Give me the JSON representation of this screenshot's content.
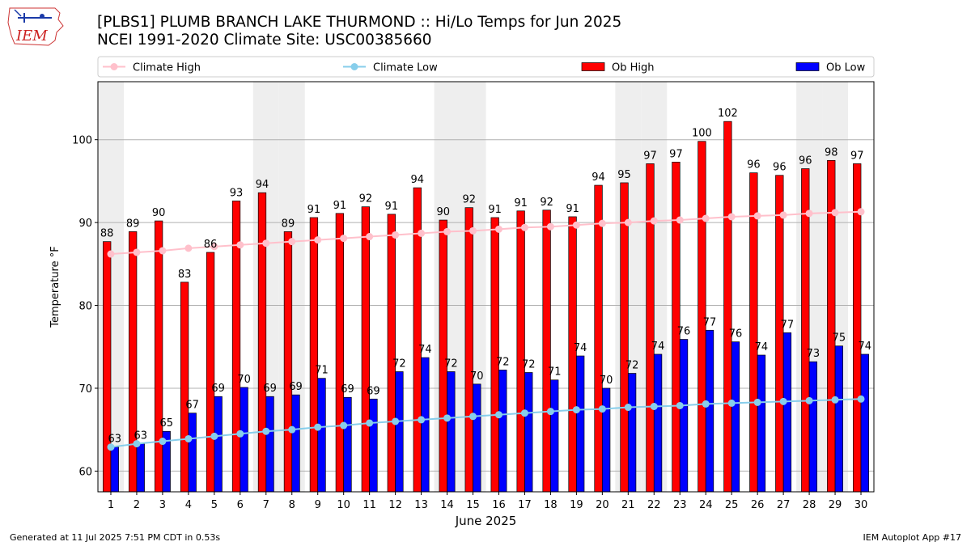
{
  "header": {
    "title_line1": "[PLBS1] PLUMB BRANCH LAKE THURMOND :: Hi/Lo Temps for Jun 2025",
    "title_line2": "NCEI 1991-2020 Climate Site: USC00385660",
    "logo_text": "IEM"
  },
  "footer": {
    "generated": "Generated at 11 Jul 2025 7:51 PM CDT in 0.53s",
    "app": "IEM Autoplot App #17"
  },
  "chart_data": {
    "type": "bar",
    "xlabel": "June 2025",
    "ylabel": "Temperature °F",
    "ylim": [
      57.5,
      107
    ],
    "yticks": [
      60,
      70,
      80,
      90,
      100
    ],
    "categories": [
      "1",
      "2",
      "3",
      "4",
      "5",
      "6",
      "7",
      "8",
      "9",
      "10",
      "11",
      "12",
      "13",
      "14",
      "15",
      "16",
      "17",
      "18",
      "19",
      "20",
      "21",
      "22",
      "23",
      "24",
      "25",
      "26",
      "27",
      "28",
      "29",
      "30"
    ],
    "legend": [
      "Climate High",
      "Climate Low",
      "Ob High",
      "Ob Low"
    ],
    "legend_position": "top",
    "grid": true,
    "weekend_shading_days": [
      1,
      7,
      8,
      14,
      15,
      21,
      22,
      28,
      29
    ],
    "series": [
      {
        "name": "Ob High",
        "kind": "bar",
        "color": "#ff0000",
        "values": [
          87.7,
          88.9,
          90.2,
          82.8,
          86.4,
          92.6,
          93.6,
          88.9,
          90.6,
          91.1,
          91.9,
          91.0,
          94.2,
          90.3,
          91.8,
          90.6,
          91.4,
          91.5,
          90.7,
          94.5,
          94.8,
          97.1,
          97.3,
          99.8,
          102.2,
          96.0,
          95.7,
          96.5,
          97.5,
          97.1
        ],
        "labels": [
          "88",
          "89",
          "90",
          "83",
          "86",
          "93",
          "94",
          "89",
          "91",
          "91",
          "92",
          "91",
          "94",
          "90",
          "92",
          "91",
          "91",
          "92",
          "91",
          "94",
          "95",
          "97",
          "97",
          "100",
          "102",
          "96",
          "96",
          "96",
          "98",
          "97"
        ]
      },
      {
        "name": "Ob Low",
        "kind": "bar",
        "color": "#0000ff",
        "values": [
          62.9,
          63.3,
          64.8,
          67.0,
          69.0,
          70.1,
          69.0,
          69.2,
          71.2,
          68.9,
          68.7,
          72.0,
          73.7,
          72.0,
          70.5,
          72.2,
          71.9,
          71.0,
          73.9,
          70.0,
          71.8,
          74.1,
          75.9,
          77.0,
          75.6,
          74.0,
          76.7,
          73.2,
          75.1,
          74.1
        ],
        "labels": [
          "63",
          "63",
          "65",
          "67",
          "69",
          "70",
          "69",
          "69",
          "71",
          "69",
          "69",
          "72",
          "74",
          "72",
          "70",
          "72",
          "72",
          "71",
          "74",
          "70",
          "72",
          "74",
          "76",
          "77",
          "76",
          "74",
          "77",
          "73",
          "75",
          "74"
        ]
      },
      {
        "name": "Climate High",
        "kind": "line",
        "color": "#ffc0cb",
        "values": [
          86.2,
          86.4,
          86.6,
          86.9,
          87.1,
          87.3,
          87.5,
          87.7,
          87.9,
          88.1,
          88.3,
          88.5,
          88.7,
          88.9,
          89.0,
          89.2,
          89.4,
          89.5,
          89.7,
          89.9,
          90.0,
          90.2,
          90.3,
          90.5,
          90.7,
          90.8,
          90.9,
          91.1,
          91.2,
          91.3
        ]
      },
      {
        "name": "Climate Low",
        "kind": "line",
        "color": "#87ceeb",
        "values": [
          62.9,
          63.3,
          63.6,
          63.9,
          64.2,
          64.5,
          64.8,
          65.0,
          65.3,
          65.5,
          65.8,
          66.0,
          66.2,
          66.4,
          66.6,
          66.8,
          67.0,
          67.2,
          67.4,
          67.5,
          67.7,
          67.8,
          67.9,
          68.1,
          68.2,
          68.3,
          68.4,
          68.5,
          68.6,
          68.7
        ]
      }
    ]
  }
}
